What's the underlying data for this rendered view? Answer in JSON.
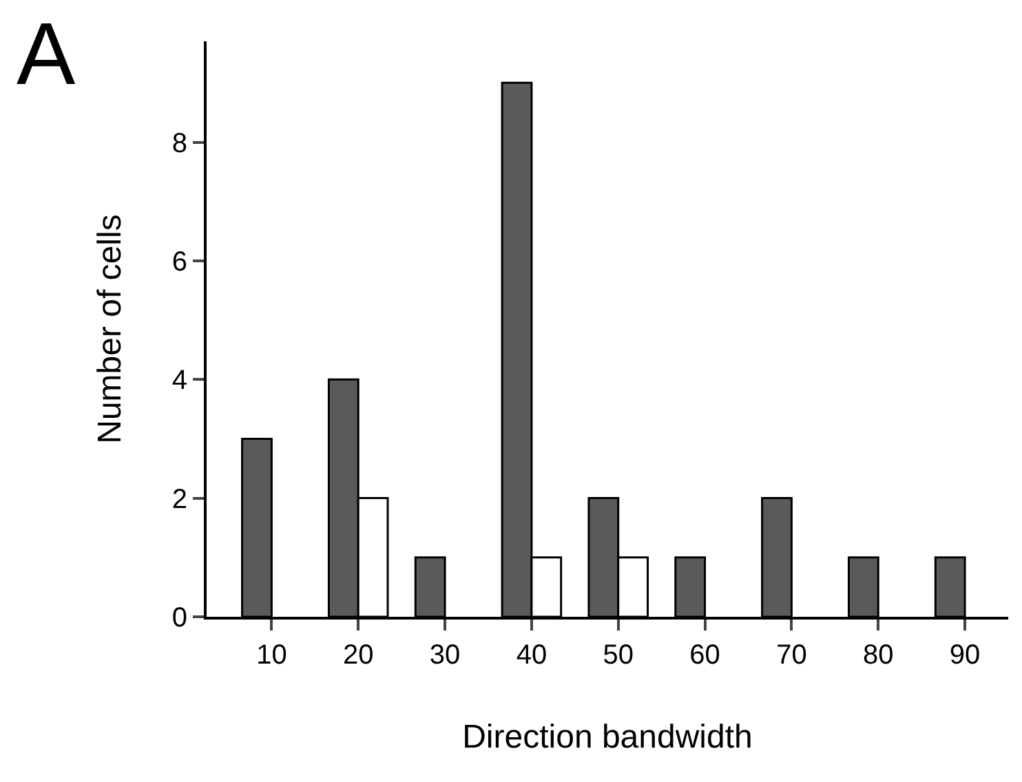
{
  "chart_data": {
    "type": "bar",
    "xlabel": "Direction bandwidth",
    "ylabel": "Number of cells",
    "categories": [
      "10",
      "20",
      "30",
      "40",
      "50",
      "60",
      "70",
      "80",
      "90"
    ],
    "series": [
      {
        "color": "#5a5a5a",
        "values": [
          3,
          4,
          1,
          9,
          2,
          1,
          2,
          1,
          1
        ]
      },
      {
        "color": "#ffffff",
        "values": [
          null,
          2,
          null,
          1,
          1,
          null,
          null,
          null,
          null
        ]
      }
    ],
    "ylim": [
      0,
      9.7
    ],
    "yticks": [
      0,
      2,
      4,
      6,
      8
    ],
    "annotations": [
      "A"
    ]
  }
}
